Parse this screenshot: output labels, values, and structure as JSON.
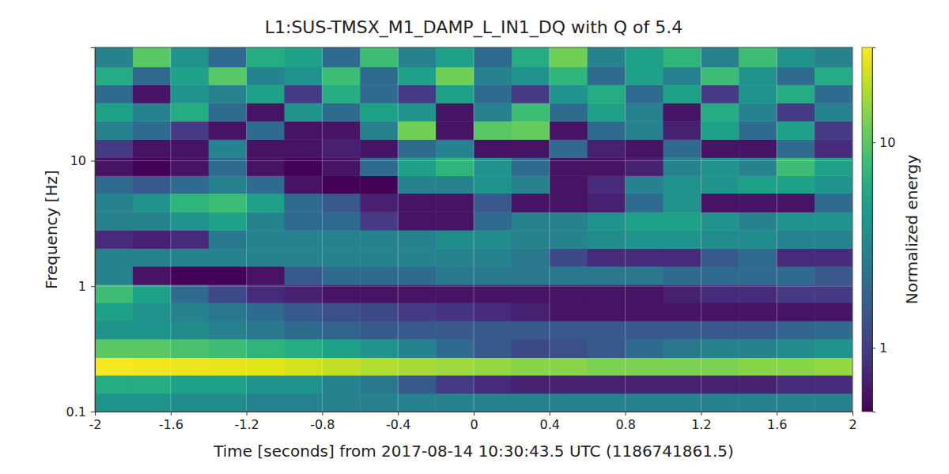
{
  "chart_data": {
    "type": "heatmap",
    "title": "L1:SUS-TMSX_M1_DAMP_L_IN1_DQ with Q of 5.4",
    "x_label": "Time [seconds] from 2017-08-14 10:30:43.5 UTC (1186741861.5)",
    "y_label": "Frequency [Hz]",
    "colorbar_label": "Normalized energy",
    "color": "viridis",
    "log": "y",
    "grid": true,
    "xlim": [
      -2,
      2
    ],
    "ylim": [
      0.1,
      80
    ],
    "xticks": [
      -2,
      -1.6,
      -1.2,
      -0.8,
      -0.4,
      0,
      0.4,
      0.8,
      1.2,
      1.6,
      2
    ],
    "yticks": [
      0.1,
      1,
      10
    ],
    "zlim": [
      0.49,
      29
    ],
    "zticks": [
      1,
      10
    ],
    "x_bins": [
      -2,
      -1.8,
      -1.6,
      -1.4,
      -1.2,
      -1,
      -0.8,
      -0.6,
      -0.4,
      -0.2,
      0,
      0.2,
      0.4,
      0.6,
      0.8,
      1,
      1.2,
      1.4,
      1.6,
      1.8,
      2
    ],
    "y_bins": [
      0.1,
      0.14,
      0.195,
      0.27,
      0.38,
      0.53,
      0.74,
      1.03,
      1.44,
      2.0,
      2.8,
      3.9,
      5.5,
      7.6,
      10.6,
      14.8,
      20.7,
      28.9,
      40.3,
      56,
      80
    ],
    "z": [
      [
        4,
        4,
        3.5,
        3.5,
        3,
        3,
        3,
        3,
        3,
        3,
        3,
        3,
        3,
        3,
        3,
        3,
        3,
        3,
        3,
        3
      ],
      [
        6,
        6,
        5,
        5,
        4,
        4,
        3,
        2.5,
        1.5,
        1,
        0.8,
        0.7,
        0.7,
        0.7,
        0.7,
        0.7,
        0.7,
        0.7,
        0.8,
        0.8
      ],
      [
        28,
        27,
        26,
        25,
        24,
        22,
        20,
        18,
        17,
        16,
        15,
        14,
        14,
        13,
        13,
        13,
        13,
        14,
        14,
        15
      ],
      [
        10,
        10,
        9,
        8,
        7,
        6,
        5,
        4,
        3,
        2,
        1.5,
        1.2,
        1.3,
        1.5,
        2,
        2.5,
        3,
        3,
        3.5,
        4
      ],
      [
        4,
        4,
        3.5,
        3,
        2.5,
        2,
        1.8,
        1.5,
        1.5,
        1.5,
        1.5,
        1.5,
        1.5,
        1.5,
        1.5,
        1.5,
        1.5,
        1.5,
        1.8,
        2
      ],
      [
        5,
        4,
        3,
        2.5,
        2,
        1.5,
        1.3,
        1.2,
        1,
        0.9,
        0.8,
        0.7,
        0.6,
        0.6,
        0.6,
        0.6,
        0.6,
        0.6,
        0.6,
        0.6
      ],
      [
        8,
        5,
        2,
        1.2,
        0.8,
        0.7,
        0.6,
        0.6,
        0.6,
        0.6,
        0.6,
        0.6,
        0.6,
        0.6,
        0.6,
        0.7,
        0.8,
        0.8,
        1,
        1
      ],
      [
        3,
        0.6,
        0.5,
        0.5,
        0.6,
        1.5,
        2,
        2,
        2,
        2.5,
        2.5,
        2.5,
        2.5,
        2.5,
        2.5,
        2,
        2,
        2,
        2,
        1.5
      ],
      [
        3,
        3,
        3,
        3,
        3,
        3,
        3,
        3,
        3,
        3,
        3,
        2.5,
        1.2,
        0.8,
        0.8,
        0.8,
        1.5,
        2,
        0.8,
        0.8
      ],
      [
        0.8,
        0.7,
        0.8,
        2.5,
        3,
        3,
        3,
        3,
        3,
        3.5,
        3.5,
        3,
        3,
        3.5,
        4,
        4,
        3.5,
        3.5,
        3,
        3
      ],
      [
        3,
        3,
        4,
        5,
        3,
        2,
        2,
        1,
        0.6,
        0.6,
        2,
        3,
        3,
        4,
        5,
        5,
        4,
        3,
        4,
        4
      ],
      [
        3,
        4,
        7,
        8,
        5,
        2,
        1.5,
        0.7,
        0.6,
        0.6,
        1.5,
        0.6,
        0.6,
        0.7,
        2,
        4,
        0.6,
        0.6,
        0.6,
        2
      ],
      [
        2,
        1.5,
        2,
        3,
        2,
        0.6,
        0.5,
        0.5,
        3,
        3,
        4,
        3,
        0.6,
        0.8,
        3,
        4,
        4,
        5,
        5,
        4
      ],
      [
        0.6,
        0.5,
        0.6,
        2,
        0.6,
        0.5,
        0.6,
        2,
        5,
        7,
        4,
        2,
        0.6,
        0.6,
        0.7,
        3,
        4,
        3,
        8,
        5
      ],
      [
        1,
        0.6,
        0.6,
        3,
        0.6,
        0.6,
        0.7,
        0.6,
        2,
        3,
        0.6,
        0.6,
        2,
        0.7,
        0.6,
        2,
        0.6,
        0.6,
        2,
        0.8
      ],
      [
        3,
        2,
        1,
        0.6,
        2,
        0.6,
        0.6,
        3,
        12,
        0.6,
        10,
        11,
        0.6,
        2,
        3,
        0.7,
        5,
        2,
        5,
        1
      ],
      [
        5,
        3,
        6,
        2,
        0.6,
        4,
        2,
        5,
        4,
        0.6,
        3,
        8,
        2,
        5,
        3,
        0.6,
        6,
        3,
        1,
        3
      ],
      [
        2,
        0.6,
        4,
        3,
        5,
        1,
        6,
        2,
        1,
        5,
        2,
        1,
        4,
        6,
        2,
        5,
        1,
        4,
        6,
        2
      ],
      [
        6,
        2,
        5,
        10,
        3,
        4,
        8,
        2,
        5,
        12,
        3,
        4,
        7,
        2,
        5,
        3,
        8,
        4,
        2,
        6
      ],
      [
        3,
        10,
        4,
        2,
        6,
        5,
        2,
        8,
        3,
        5,
        2,
        6,
        12,
        3,
        5,
        7,
        3,
        8,
        4,
        3
      ]
    ]
  }
}
